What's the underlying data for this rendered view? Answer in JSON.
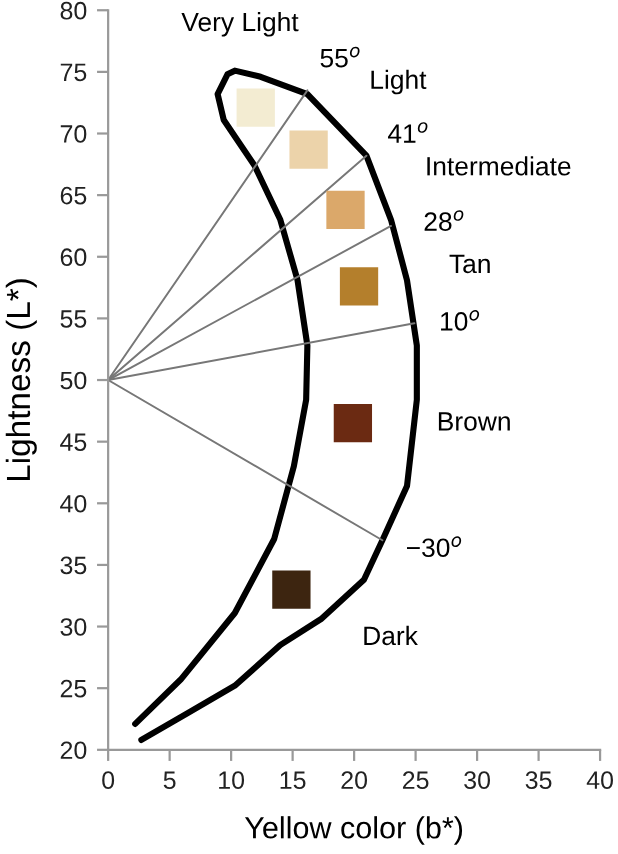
{
  "chart_data": {
    "type": "scatter",
    "xlabel": "Yellow color (b*)",
    "ylabel": "Lightness (L*)",
    "xlim": [
      0,
      40
    ],
    "ylim": [
      20,
      80
    ],
    "xticks": [
      0,
      5,
      10,
      15,
      20,
      25,
      30,
      35,
      40
    ],
    "yticks": [
      20,
      25,
      30,
      35,
      40,
      45,
      50,
      55,
      60,
      65,
      70,
      75,
      80
    ],
    "grid": false,
    "legend": false,
    "series": [
      {
        "type": "line",
        "color": "#000000",
        "x": [
          2.7,
          6.5,
          10.3,
          14,
          17.3,
          20.8,
          22.3,
          24.3,
          25.1,
          25.1,
          24.3,
          23,
          21,
          16.2,
          12.4,
          10.3,
          9.7,
          8.9,
          9.4,
          11.9,
          14,
          15.4,
          16.2,
          16.1,
          15.1,
          13.5,
          10.3,
          5.9,
          2.2
        ],
        "values": [
          20.8,
          23,
          25.2,
          28.5,
          30.6,
          33.8,
          37,
          41.4,
          48.4,
          52.8,
          58.1,
          63,
          68.2,
          73.2,
          74.6,
          75.1,
          74.8,
          73.2,
          71.1,
          67.4,
          63,
          58.1,
          52.8,
          48.4,
          43,
          37.1,
          31.1,
          25.7,
          22.1
        ]
      },
      {
        "type": "line",
        "color": "#777777",
        "x": [
          0,
          16.2
        ],
        "values": [
          50,
          73.5
        ]
      },
      {
        "type": "line",
        "color": "#777777",
        "x": [
          0,
          21
        ],
        "values": [
          50,
          68.2
        ]
      },
      {
        "type": "line",
        "color": "#777777",
        "x": [
          0,
          23
        ],
        "values": [
          50,
          62.5
        ]
      },
      {
        "type": "line",
        "color": "#777777",
        "x": [
          0,
          24.9
        ],
        "values": [
          50,
          54.6
        ]
      },
      {
        "type": "line",
        "color": "#777777",
        "x": [
          0,
          22.3
        ],
        "values": [
          50,
          37
        ]
      },
      {
        "marker": "square",
        "x": [
          12,
          16.3,
          19.3,
          20.4,
          19.9,
          14.9
        ],
        "values": [
          72.1,
          68.7,
          63.8,
          57.6,
          46.5,
          33
        ],
        "colors": [
          "#f3ecd2",
          "#ecd3aa",
          "#dba86a",
          "#b47f2c",
          "#6b2a12",
          "#3d2510"
        ]
      }
    ],
    "annotations": [
      "Very Light",
      "55$^{o}$",
      "Light",
      "41$^{o}$",
      "Intermediate",
      "28$^{o}$",
      "Tan",
      "10$^{o}$",
      "Brown",
      "−30$^{o}$",
      "Dark"
    ]
  }
}
